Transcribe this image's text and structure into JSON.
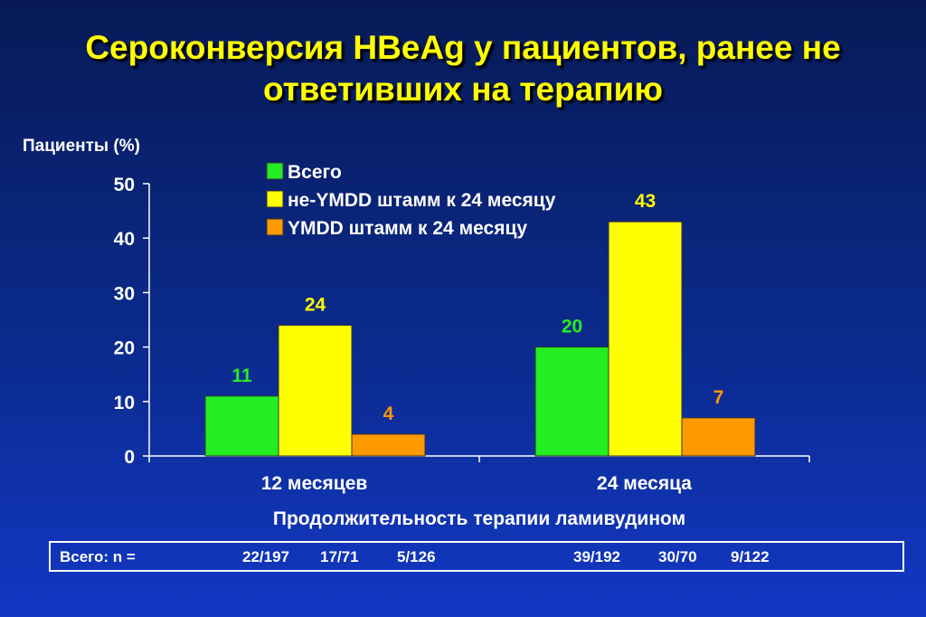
{
  "title": {
    "line1": "Сероконверсия HBeAg у пациентов, ранее не",
    "line2": "ответивших на терапию"
  },
  "colors": {
    "background": "#0b2a8c",
    "title": "#ffff00",
    "series_total": "#22ee22",
    "series_non_ymdd": "#ffff00",
    "series_ymdd": "#ff9900",
    "text": "#ffffff"
  },
  "chart_data": {
    "type": "bar",
    "categories": [
      "12 месяцев",
      "24 месяца"
    ],
    "series": [
      {
        "name": "Всего",
        "color": "#22ee22",
        "values": [
          11,
          20
        ]
      },
      {
        "name": "не-YMDD штамм к 24 месяцу",
        "color": "#ffff00",
        "values": [
          24,
          43
        ]
      },
      {
        "name": "YMDD штамм к 24 месяцу",
        "color": "#ff9900",
        "values": [
          4,
          7
        ]
      }
    ],
    "value_labels": [
      [
        "11",
        "20"
      ],
      [
        "24",
        "43"
      ],
      [
        "4",
        "7"
      ]
    ],
    "ylabel": "Пациенты (%)",
    "xlabel": "Продолжительность терапии ламивудином",
    "ylim": [
      0,
      50
    ],
    "yticks": [
      0,
      10,
      20,
      30,
      40,
      50
    ],
    "ytick_labels": [
      "0",
      "10",
      "20",
      "30",
      "40",
      "50"
    ],
    "grid": false,
    "legend_position": "top-center"
  },
  "n_row": {
    "label": "Всего: n =",
    "values": [
      "22/197",
      "17/71",
      "5/126",
      "39/192",
      "30/70",
      "9/122"
    ]
  }
}
